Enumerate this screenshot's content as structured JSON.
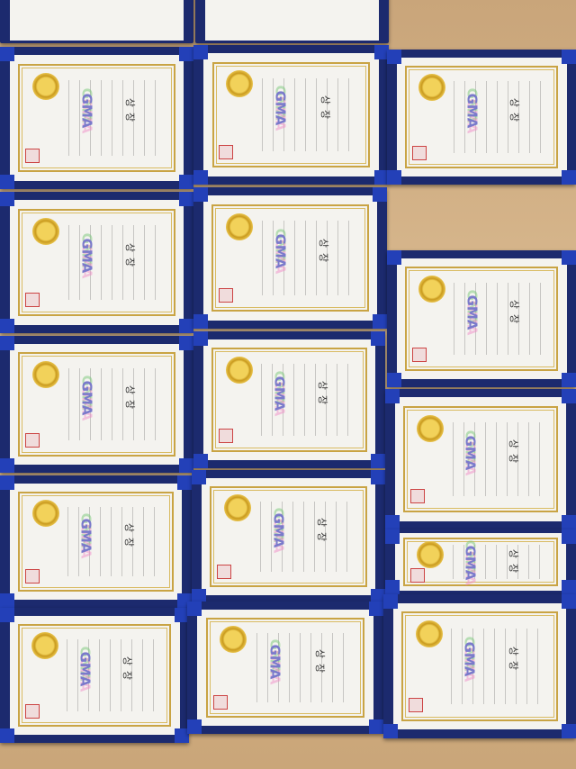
{
  "certificates": [
    {
      "title": "상장",
      "logo": "GMA"
    },
    {
      "title": "상장",
      "logo": "GMA"
    },
    {
      "title": "상장",
      "logo": "GMA"
    },
    {
      "title": "상장",
      "logo": "GMA"
    },
    {
      "title": "상장",
      "logo": "GMA"
    },
    {
      "title": "상장",
      "logo": "GMA"
    },
    {
      "title": "상장",
      "logo": "GMA"
    },
    {
      "title": "상장",
      "logo": "GMA"
    },
    {
      "title": "상장",
      "logo": "GMA"
    },
    {
      "title": "상장",
      "logo": "GMA"
    },
    {
      "title": "상장",
      "logo": "GMA"
    },
    {
      "title": "상장",
      "logo": "GMA"
    },
    {
      "title": "상장",
      "logo": "GMA"
    },
    {
      "title": "상장",
      "logo": "GMA"
    },
    {
      "title": "상장",
      "logo": "GMA"
    }
  ]
}
